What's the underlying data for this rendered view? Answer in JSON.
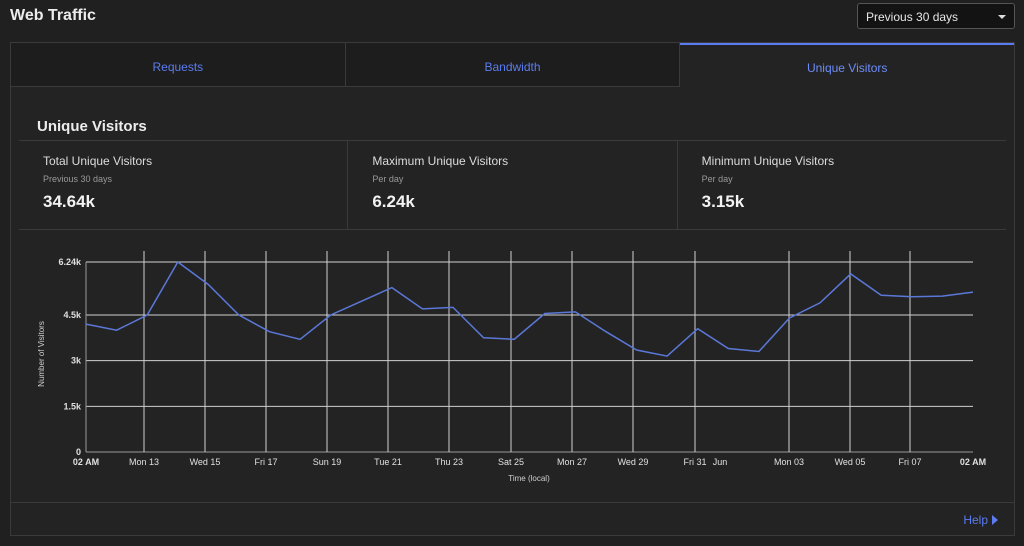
{
  "header": {
    "title": "Web Traffic"
  },
  "range_select": {
    "value": "Previous 30 days"
  },
  "tabs": [
    {
      "label": "Requests",
      "active": false
    },
    {
      "label": "Bandwidth",
      "active": false
    },
    {
      "label": "Unique Visitors",
      "active": true
    }
  ],
  "section": {
    "title": "Unique Visitors"
  },
  "stats": [
    {
      "label": "Total Unique Visitors",
      "sub": "Previous 30 days",
      "value": "34.64k"
    },
    {
      "label": "Maximum Unique Visitors",
      "sub": "Per day",
      "value": "6.24k"
    },
    {
      "label": "Minimum Unique Visitors",
      "sub": "Per day",
      "value": "3.15k"
    }
  ],
  "chart_data": {
    "type": "line",
    "ylabel": "Number of Visitors",
    "xlabel": "Time (local)",
    "ylim": [
      0,
      6240
    ],
    "yticks": [
      {
        "value": 0,
        "label": "0"
      },
      {
        "value": 1500,
        "label": "1.5k"
      },
      {
        "value": 3000,
        "label": "3k"
      },
      {
        "value": 4500,
        "label": "4.5k"
      },
      {
        "value": 6240,
        "label": "6.24k"
      }
    ],
    "xtick_labels": [
      "02 AM",
      "Mon 13",
      "Wed 15",
      "Fri 17",
      "Sun 19",
      "Tue 21",
      "Thu 23",
      "Sat 25",
      "Mon 27",
      "Wed 29",
      "Fri 31",
      "Jun",
      "Mon 03",
      "Wed 05",
      "Fri 07",
      "02 AM"
    ],
    "series": [
      {
        "color": "#5b78d8",
        "values": [
          4200,
          4000,
          4500,
          6240,
          5500,
          4500,
          3950,
          3700,
          4500,
          4950,
          5400,
          4700,
          4750,
          3750,
          3700,
          4550,
          4600,
          3950,
          3350,
          3150,
          4050,
          3400,
          3300,
          4400,
          4900,
          5850,
          5150,
          5100,
          5120,
          5250
        ]
      }
    ],
    "grid": true,
    "legend": "none"
  },
  "footer": {
    "help_label": "Help"
  }
}
